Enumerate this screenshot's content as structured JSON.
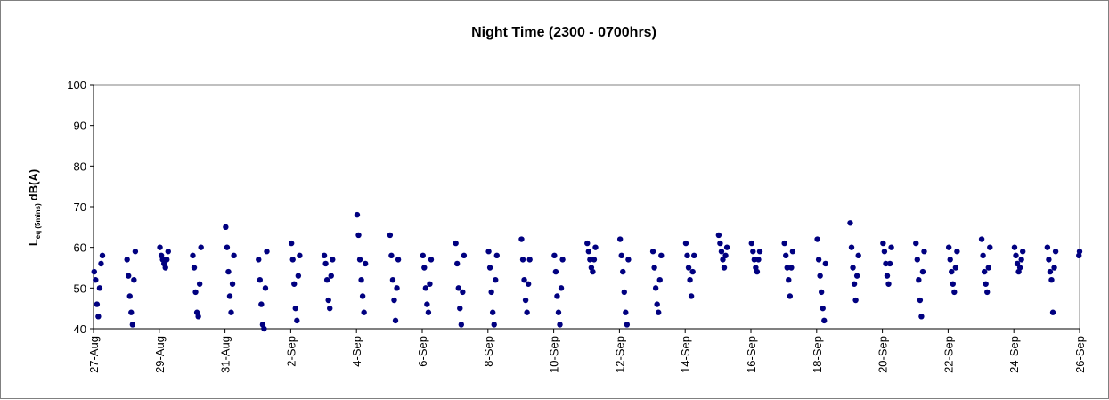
{
  "chart_data": {
    "type": "scatter",
    "title": "Night Time (2300 - 0700hrs)",
    "ylabel": {
      "main": "L",
      "sub": "eq (5mins)",
      "unit": "dB(A)"
    },
    "ylim": [
      40,
      100
    ],
    "yticks": [
      40,
      50,
      60,
      70,
      80,
      90,
      100
    ],
    "xlim": [
      "2025-08-27",
      "2025-09-26"
    ],
    "xticks": [
      {
        "date": "2025-08-27",
        "label": "27-Aug"
      },
      {
        "date": "2025-08-29",
        "label": "29-Aug"
      },
      {
        "date": "2025-08-31",
        "label": "31-Aug"
      },
      {
        "date": "2025-09-02",
        "label": "2-Sep"
      },
      {
        "date": "2025-09-04",
        "label": "4-Sep"
      },
      {
        "date": "2025-09-06",
        "label": "6-Sep"
      },
      {
        "date": "2025-09-08",
        "label": "8-Sep"
      },
      {
        "date": "2025-09-10",
        "label": "10-Sep"
      },
      {
        "date": "2025-09-12",
        "label": "12-Sep"
      },
      {
        "date": "2025-09-14",
        "label": "14-Sep"
      },
      {
        "date": "2025-09-16",
        "label": "16-Sep"
      },
      {
        "date": "2025-09-18",
        "label": "18-Sep"
      },
      {
        "date": "2025-09-20",
        "label": "20-Sep"
      },
      {
        "date": "2025-09-22",
        "label": "22-Sep"
      },
      {
        "date": "2025-09-24",
        "label": "24-Sep"
      },
      {
        "date": "2025-09-26",
        "label": "26-Sep"
      }
    ],
    "grid": false,
    "marker_color": "#000080",
    "series": [
      {
        "points": [
          {
            "x": "2025-08-27 00:30",
            "y": 54
          },
          {
            "x": "2025-08-27 01:30",
            "y": 52
          },
          {
            "x": "2025-08-27 02:30",
            "y": 46
          },
          {
            "x": "2025-08-27 03:30",
            "y": 43
          },
          {
            "x": "2025-08-27 04:30",
            "y": 50
          },
          {
            "x": "2025-08-27 05:30",
            "y": 56
          },
          {
            "x": "2025-08-27 06:30",
            "y": 58
          },
          {
            "x": "2025-08-28 00:30",
            "y": 57
          },
          {
            "x": "2025-08-28 01:30",
            "y": 53
          },
          {
            "x": "2025-08-28 02:30",
            "y": 48
          },
          {
            "x": "2025-08-28 03:30",
            "y": 44
          },
          {
            "x": "2025-08-28 04:30",
            "y": 41
          },
          {
            "x": "2025-08-28 05:30",
            "y": 52
          },
          {
            "x": "2025-08-28 06:30",
            "y": 59
          },
          {
            "x": "2025-08-29 00:30",
            "y": 60
          },
          {
            "x": "2025-08-29 01:30",
            "y": 58
          },
          {
            "x": "2025-08-29 02:30",
            "y": 57
          },
          {
            "x": "2025-08-29 03:30",
            "y": 56
          },
          {
            "x": "2025-08-29 04:30",
            "y": 55
          },
          {
            "x": "2025-08-29 05:30",
            "y": 57
          },
          {
            "x": "2025-08-29 06:30",
            "y": 59
          },
          {
            "x": "2025-08-30 00:30",
            "y": 58
          },
          {
            "x": "2025-08-30 01:30",
            "y": 55
          },
          {
            "x": "2025-08-30 02:30",
            "y": 49
          },
          {
            "x": "2025-08-30 03:30",
            "y": 44
          },
          {
            "x": "2025-08-30 04:30",
            "y": 43
          },
          {
            "x": "2025-08-30 05:30",
            "y": 51
          },
          {
            "x": "2025-08-30 06:30",
            "y": 60
          },
          {
            "x": "2025-08-31 00:30",
            "y": 65
          },
          {
            "x": "2025-08-31 01:30",
            "y": 60
          },
          {
            "x": "2025-08-31 02:30",
            "y": 54
          },
          {
            "x": "2025-08-31 03:30",
            "y": 48
          },
          {
            "x": "2025-08-31 04:30",
            "y": 44
          },
          {
            "x": "2025-08-31 05:30",
            "y": 51
          },
          {
            "x": "2025-08-31 06:30",
            "y": 58
          },
          {
            "x": "2025-09-01 00:30",
            "y": 57
          },
          {
            "x": "2025-09-01 01:30",
            "y": 52
          },
          {
            "x": "2025-09-01 02:30",
            "y": 46
          },
          {
            "x": "2025-09-01 03:30",
            "y": 41
          },
          {
            "x": "2025-09-01 04:30",
            "y": 40
          },
          {
            "x": "2025-09-01 05:30",
            "y": 50
          },
          {
            "x": "2025-09-01 06:30",
            "y": 59
          },
          {
            "x": "2025-09-02 00:30",
            "y": 61
          },
          {
            "x": "2025-09-02 01:30",
            "y": 57
          },
          {
            "x": "2025-09-02 02:30",
            "y": 51
          },
          {
            "x": "2025-09-02 03:30",
            "y": 45
          },
          {
            "x": "2025-09-02 04:30",
            "y": 42
          },
          {
            "x": "2025-09-02 05:30",
            "y": 53
          },
          {
            "x": "2025-09-02 06:30",
            "y": 58
          },
          {
            "x": "2025-09-03 00:30",
            "y": 58
          },
          {
            "x": "2025-09-03 01:30",
            "y": 56
          },
          {
            "x": "2025-09-03 02:30",
            "y": 52
          },
          {
            "x": "2025-09-03 03:30",
            "y": 47
          },
          {
            "x": "2025-09-03 04:30",
            "y": 45
          },
          {
            "x": "2025-09-03 05:30",
            "y": 53
          },
          {
            "x": "2025-09-03 06:30",
            "y": 57
          },
          {
            "x": "2025-09-04 00:30",
            "y": 68
          },
          {
            "x": "2025-09-04 01:30",
            "y": 63
          },
          {
            "x": "2025-09-04 02:30",
            "y": 57
          },
          {
            "x": "2025-09-04 03:30",
            "y": 52
          },
          {
            "x": "2025-09-04 04:30",
            "y": 48
          },
          {
            "x": "2025-09-04 05:30",
            "y": 44
          },
          {
            "x": "2025-09-04 06:30",
            "y": 56
          },
          {
            "x": "2025-09-05 00:30",
            "y": 63
          },
          {
            "x": "2025-09-05 01:30",
            "y": 58
          },
          {
            "x": "2025-09-05 02:30",
            "y": 52
          },
          {
            "x": "2025-09-05 03:30",
            "y": 47
          },
          {
            "x": "2025-09-05 04:30",
            "y": 42
          },
          {
            "x": "2025-09-05 05:30",
            "y": 50
          },
          {
            "x": "2025-09-05 06:30",
            "y": 57
          },
          {
            "x": "2025-09-06 00:30",
            "y": 58
          },
          {
            "x": "2025-09-06 01:30",
            "y": 55
          },
          {
            "x": "2025-09-06 02:30",
            "y": 50
          },
          {
            "x": "2025-09-06 03:30",
            "y": 46
          },
          {
            "x": "2025-09-06 04:30",
            "y": 44
          },
          {
            "x": "2025-09-06 05:30",
            "y": 51
          },
          {
            "x": "2025-09-06 06:30",
            "y": 57
          },
          {
            "x": "2025-09-07 00:30",
            "y": 61
          },
          {
            "x": "2025-09-07 01:30",
            "y": 56
          },
          {
            "x": "2025-09-07 02:30",
            "y": 50
          },
          {
            "x": "2025-09-07 03:30",
            "y": 45
          },
          {
            "x": "2025-09-07 04:30",
            "y": 41
          },
          {
            "x": "2025-09-07 05:30",
            "y": 49
          },
          {
            "x": "2025-09-07 06:30",
            "y": 58
          },
          {
            "x": "2025-09-08 00:30",
            "y": 59
          },
          {
            "x": "2025-09-08 01:30",
            "y": 55
          },
          {
            "x": "2025-09-08 02:30",
            "y": 49
          },
          {
            "x": "2025-09-08 03:30",
            "y": 44
          },
          {
            "x": "2025-09-08 04:30",
            "y": 41
          },
          {
            "x": "2025-09-08 05:30",
            "y": 52
          },
          {
            "x": "2025-09-08 06:30",
            "y": 58
          },
          {
            "x": "2025-09-09 00:30",
            "y": 62
          },
          {
            "x": "2025-09-09 01:30",
            "y": 57
          },
          {
            "x": "2025-09-09 02:30",
            "y": 52
          },
          {
            "x": "2025-09-09 03:30",
            "y": 47
          },
          {
            "x": "2025-09-09 04:30",
            "y": 44
          },
          {
            "x": "2025-09-09 05:30",
            "y": 51
          },
          {
            "x": "2025-09-09 06:30",
            "y": 57
          },
          {
            "x": "2025-09-10 00:30",
            "y": 58
          },
          {
            "x": "2025-09-10 01:30",
            "y": 54
          },
          {
            "x": "2025-09-10 02:30",
            "y": 48
          },
          {
            "x": "2025-09-10 03:30",
            "y": 44
          },
          {
            "x": "2025-09-10 04:30",
            "y": 41
          },
          {
            "x": "2025-09-10 05:30",
            "y": 50
          },
          {
            "x": "2025-09-10 06:30",
            "y": 57
          },
          {
            "x": "2025-09-11 00:30",
            "y": 61
          },
          {
            "x": "2025-09-11 01:30",
            "y": 59
          },
          {
            "x": "2025-09-11 02:30",
            "y": 57
          },
          {
            "x": "2025-09-11 03:30",
            "y": 55
          },
          {
            "x": "2025-09-11 04:30",
            "y": 54
          },
          {
            "x": "2025-09-11 05:30",
            "y": 57
          },
          {
            "x": "2025-09-11 06:30",
            "y": 60
          },
          {
            "x": "2025-09-12 00:30",
            "y": 62
          },
          {
            "x": "2025-09-12 01:30",
            "y": 58
          },
          {
            "x": "2025-09-12 02:30",
            "y": 54
          },
          {
            "x": "2025-09-12 03:30",
            "y": 49
          },
          {
            "x": "2025-09-12 04:30",
            "y": 44
          },
          {
            "x": "2025-09-12 05:30",
            "y": 41
          },
          {
            "x": "2025-09-12 06:30",
            "y": 57
          },
          {
            "x": "2025-09-13 00:30",
            "y": 59
          },
          {
            "x": "2025-09-13 01:30",
            "y": 55
          },
          {
            "x": "2025-09-13 02:30",
            "y": 50
          },
          {
            "x": "2025-09-13 03:30",
            "y": 46
          },
          {
            "x": "2025-09-13 04:30",
            "y": 44
          },
          {
            "x": "2025-09-13 05:30",
            "y": 52
          },
          {
            "x": "2025-09-13 06:30",
            "y": 58
          },
          {
            "x": "2025-09-14 00:30",
            "y": 61
          },
          {
            "x": "2025-09-14 01:30",
            "y": 58
          },
          {
            "x": "2025-09-14 02:30",
            "y": 55
          },
          {
            "x": "2025-09-14 03:30",
            "y": 52
          },
          {
            "x": "2025-09-14 04:30",
            "y": 48
          },
          {
            "x": "2025-09-14 05:30",
            "y": 54
          },
          {
            "x": "2025-09-14 06:30",
            "y": 58
          },
          {
            "x": "2025-09-15 00:30",
            "y": 63
          },
          {
            "x": "2025-09-15 01:30",
            "y": 61
          },
          {
            "x": "2025-09-15 02:30",
            "y": 59
          },
          {
            "x": "2025-09-15 03:30",
            "y": 57
          },
          {
            "x": "2025-09-15 04:30",
            "y": 55
          },
          {
            "x": "2025-09-15 05:30",
            "y": 58
          },
          {
            "x": "2025-09-15 06:30",
            "y": 60
          },
          {
            "x": "2025-09-16 00:30",
            "y": 61
          },
          {
            "x": "2025-09-16 01:30",
            "y": 59
          },
          {
            "x": "2025-09-16 02:30",
            "y": 57
          },
          {
            "x": "2025-09-16 03:30",
            "y": 55
          },
          {
            "x": "2025-09-16 04:30",
            "y": 54
          },
          {
            "x": "2025-09-16 05:30",
            "y": 57
          },
          {
            "x": "2025-09-16 06:30",
            "y": 59
          },
          {
            "x": "2025-09-17 00:30",
            "y": 61
          },
          {
            "x": "2025-09-17 01:30",
            "y": 58
          },
          {
            "x": "2025-09-17 02:30",
            "y": 55
          },
          {
            "x": "2025-09-17 03:30",
            "y": 52
          },
          {
            "x": "2025-09-17 04:30",
            "y": 48
          },
          {
            "x": "2025-09-17 05:30",
            "y": 55
          },
          {
            "x": "2025-09-17 06:30",
            "y": 59
          },
          {
            "x": "2025-09-18 00:30",
            "y": 62
          },
          {
            "x": "2025-09-18 01:30",
            "y": 57
          },
          {
            "x": "2025-09-18 02:30",
            "y": 53
          },
          {
            "x": "2025-09-18 03:30",
            "y": 49
          },
          {
            "x": "2025-09-18 04:30",
            "y": 45
          },
          {
            "x": "2025-09-18 05:30",
            "y": 42
          },
          {
            "x": "2025-09-18 06:30",
            "y": 56
          },
          {
            "x": "2025-09-19 00:30",
            "y": 66
          },
          {
            "x": "2025-09-19 01:30",
            "y": 60
          },
          {
            "x": "2025-09-19 02:30",
            "y": 55
          },
          {
            "x": "2025-09-19 03:30",
            "y": 51
          },
          {
            "x": "2025-09-19 04:30",
            "y": 47
          },
          {
            "x": "2025-09-19 05:30",
            "y": 53
          },
          {
            "x": "2025-09-19 06:30",
            "y": 58
          },
          {
            "x": "2025-09-20 00:30",
            "y": 61
          },
          {
            "x": "2025-09-20 01:30",
            "y": 59
          },
          {
            "x": "2025-09-20 02:30",
            "y": 56
          },
          {
            "x": "2025-09-20 03:30",
            "y": 53
          },
          {
            "x": "2025-09-20 04:30",
            "y": 51
          },
          {
            "x": "2025-09-20 05:30",
            "y": 56
          },
          {
            "x": "2025-09-20 06:30",
            "y": 60
          },
          {
            "x": "2025-09-21 00:30",
            "y": 61
          },
          {
            "x": "2025-09-21 01:30",
            "y": 57
          },
          {
            "x": "2025-09-21 02:30",
            "y": 52
          },
          {
            "x": "2025-09-21 03:30",
            "y": 47
          },
          {
            "x": "2025-09-21 04:30",
            "y": 43
          },
          {
            "x": "2025-09-21 05:30",
            "y": 54
          },
          {
            "x": "2025-09-21 06:30",
            "y": 59
          },
          {
            "x": "2025-09-22 00:30",
            "y": 60
          },
          {
            "x": "2025-09-22 01:30",
            "y": 57
          },
          {
            "x": "2025-09-22 02:30",
            "y": 54
          },
          {
            "x": "2025-09-22 03:30",
            "y": 51
          },
          {
            "x": "2025-09-22 04:30",
            "y": 49
          },
          {
            "x": "2025-09-22 05:30",
            "y": 55
          },
          {
            "x": "2025-09-22 06:30",
            "y": 59
          },
          {
            "x": "2025-09-23 00:30",
            "y": 62
          },
          {
            "x": "2025-09-23 01:30",
            "y": 58
          },
          {
            "x": "2025-09-23 02:30",
            "y": 54
          },
          {
            "x": "2025-09-23 03:30",
            "y": 51
          },
          {
            "x": "2025-09-23 04:30",
            "y": 49
          },
          {
            "x": "2025-09-23 05:30",
            "y": 55
          },
          {
            "x": "2025-09-23 06:30",
            "y": 60
          },
          {
            "x": "2025-09-24 00:30",
            "y": 60
          },
          {
            "x": "2025-09-24 01:30",
            "y": 58
          },
          {
            "x": "2025-09-24 02:30",
            "y": 56
          },
          {
            "x": "2025-09-24 03:30",
            "y": 54
          },
          {
            "x": "2025-09-24 04:30",
            "y": 55
          },
          {
            "x": "2025-09-24 05:30",
            "y": 57
          },
          {
            "x": "2025-09-24 06:30",
            "y": 59
          },
          {
            "x": "2025-09-25 00:30",
            "y": 60
          },
          {
            "x": "2025-09-25 01:30",
            "y": 57
          },
          {
            "x": "2025-09-25 02:30",
            "y": 54
          },
          {
            "x": "2025-09-25 03:30",
            "y": 52
          },
          {
            "x": "2025-09-25 04:30",
            "y": 44
          },
          {
            "x": "2025-09-25 05:30",
            "y": 55
          },
          {
            "x": "2025-09-25 06:30",
            "y": 59
          },
          {
            "x": "2025-09-25 23:30",
            "y": 58
          },
          {
            "x": "2025-09-26 00:00",
            "y": 59
          }
        ]
      }
    ]
  }
}
